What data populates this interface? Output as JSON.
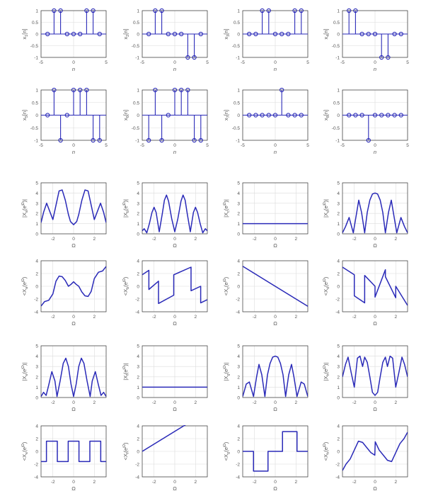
{
  "styles": {
    "line": "#2a2ab8",
    "axis": "#333333",
    "grid": "#dcdcdc",
    "tick": "#555555",
    "background": "#ffffff"
  },
  "chart_data": [
    {
      "type": "stem",
      "ylabel": "x_1[n]",
      "xlabel": "n",
      "xlim": [
        -5,
        5
      ],
      "ylim": [
        -1,
        1
      ],
      "xticks": [
        "-5",
        "0",
        "5"
      ],
      "yticks": [
        "1",
        "0.5",
        "0",
        "-0.5",
        "-1"
      ],
      "x": [
        -4,
        -3,
        -2,
        -1,
        0,
        1,
        2,
        3,
        4
      ],
      "values": [
        0,
        1,
        1,
        0,
        0,
        0,
        1,
        1,
        0
      ]
    },
    {
      "type": "stem",
      "ylabel": "x_2[n]",
      "xlabel": "n",
      "xlim": [
        -5,
        5
      ],
      "ylim": [
        -1,
        1
      ],
      "xticks": [
        "-5",
        "0",
        "5"
      ],
      "yticks": [
        "1",
        "0.5",
        "0",
        "-0.5",
        "-1"
      ],
      "x": [
        -4,
        -3,
        -2,
        -1,
        0,
        1,
        2,
        3,
        4
      ],
      "values": [
        0,
        1,
        1,
        0,
        0,
        0,
        -1,
        -1,
        0
      ]
    },
    {
      "type": "stem",
      "ylabel": "x_3[n]",
      "xlabel": "n",
      "xlim": [
        -5,
        5
      ],
      "ylim": [
        -1,
        1
      ],
      "xticks": [
        "-5",
        "0",
        "5"
      ],
      "yticks": [
        "1",
        "0.5",
        "0",
        "-0.5",
        "-1"
      ],
      "x": [
        -4,
        -3,
        -2,
        -1,
        0,
        1,
        2,
        3,
        4
      ],
      "values": [
        0,
        0,
        1,
        1,
        0,
        0,
        0,
        1,
        1
      ]
    },
    {
      "type": "stem",
      "ylabel": "x_4[n]",
      "xlabel": "n",
      "xlim": [
        -5,
        5
      ],
      "ylim": [
        -1,
        1
      ],
      "xticks": [
        "-5",
        "0",
        "5"
      ],
      "yticks": [
        "1",
        "0.5",
        "0",
        "-0.5",
        "-1"
      ],
      "x": [
        -4,
        -3,
        -2,
        -1,
        0,
        1,
        2,
        3,
        4
      ],
      "values": [
        1,
        1,
        0,
        0,
        0,
        -1,
        -1,
        0,
        0
      ]
    },
    {
      "type": "stem",
      "ylabel": "x_5[n]",
      "xlabel": "n",
      "xlim": [
        -5,
        5
      ],
      "ylim": [
        -1,
        1
      ],
      "xticks": [
        "-5",
        "0",
        "5"
      ],
      "yticks": [
        "1",
        "0.5",
        "0",
        "-0.5",
        "-1"
      ],
      "x": [
        -4,
        -3,
        -2,
        -1,
        0,
        1,
        2,
        3,
        4
      ],
      "values": [
        0,
        1,
        -1,
        0,
        1,
        1,
        1,
        -1,
        -1
      ]
    },
    {
      "type": "stem",
      "ylabel": "x_6[n]",
      "xlabel": "n",
      "xlim": [
        -5,
        5
      ],
      "ylim": [
        -1,
        1
      ],
      "xticks": [
        "-5",
        "0",
        "5"
      ],
      "yticks": [
        "1",
        "0.5",
        "0",
        "-0.5",
        "-1"
      ],
      "x": [
        -4,
        -3,
        -2,
        -1,
        0,
        1,
        2,
        3,
        4
      ],
      "values": [
        -1,
        1,
        -1,
        0,
        1,
        1,
        1,
        -1,
        -1
      ]
    },
    {
      "type": "stem",
      "ylabel": "x_7[n]",
      "xlabel": "n",
      "xlim": [
        -5,
        5
      ],
      "ylim": [
        -1,
        1
      ],
      "xticks": [
        "-5",
        "0",
        "5"
      ],
      "yticks": [
        "1",
        "0.5",
        "0",
        "-0.5",
        "-1"
      ],
      "x": [
        -4,
        -3,
        -2,
        -1,
        0,
        1,
        2,
        3,
        4
      ],
      "values": [
        0,
        0,
        0,
        0,
        0,
        1,
        0,
        0,
        0
      ]
    },
    {
      "type": "stem",
      "ylabel": "x_8[n]",
      "xlabel": "n",
      "xlim": [
        -5,
        5
      ],
      "ylim": [
        -1,
        1
      ],
      "xticks": [
        "-5",
        "0",
        "5"
      ],
      "yticks": [
        "1",
        "0.5",
        "0",
        "-0.5",
        "-1"
      ],
      "x": [
        -4,
        -3,
        -2,
        -1,
        0,
        1,
        2,
        3,
        4
      ],
      "values": [
        0,
        0,
        0,
        -1,
        0,
        0,
        0,
        0,
        0
      ]
    },
    {
      "type": "line",
      "ylabel": "|X_a(e^jΩ)|",
      "xlabel": "Ω",
      "xlim": [
        -3.1416,
        3.1416
      ],
      "ylim": [
        0,
        5
      ],
      "xticks": [
        "-2",
        "0",
        "2"
      ],
      "yticks": [
        "5",
        "4",
        "3",
        "2",
        "1",
        "0"
      ],
      "x": [
        -3.14,
        -2.9,
        -2.6,
        -2.3,
        -2.0,
        -1.7,
        -1.4,
        -1.1,
        -0.8,
        -0.5,
        -0.3,
        0,
        0.3,
        0.5,
        0.8,
        1.1,
        1.4,
        1.7,
        2.0,
        2.3,
        2.6,
        2.9,
        3.14
      ],
      "values": [
        1.1,
        2.1,
        3.0,
        2.2,
        1.4,
        2.8,
        4.2,
        4.3,
        3.3,
        1.9,
        1.2,
        0.9,
        1.2,
        1.9,
        3.3,
        4.3,
        4.2,
        2.8,
        1.4,
        2.2,
        3.0,
        2.1,
        1.1
      ]
    },
    {
      "type": "line",
      "ylabel": "|X_b(e^jΩ)|",
      "xlabel": "Ω",
      "xlim": [
        -3.1416,
        3.1416
      ],
      "ylim": [
        0,
        5
      ],
      "xticks": [
        "-2",
        "0",
        "2"
      ],
      "yticks": [
        "5",
        "4",
        "3",
        "2",
        "1",
        "0"
      ],
      "x": [
        -3.14,
        -2.95,
        -2.7,
        -2.45,
        -2.2,
        -2.0,
        -1.8,
        -1.5,
        -1.2,
        -1.0,
        -0.8,
        -0.6,
        -0.3,
        0,
        0.3,
        0.6,
        0.8,
        1.0,
        1.2,
        1.5,
        1.8,
        2.0,
        2.2,
        2.45,
        2.7,
        2.95,
        3.14
      ],
      "values": [
        0.3,
        0.5,
        0.1,
        1.0,
        2.1,
        2.6,
        2.1,
        0.2,
        2.0,
        3.3,
        3.8,
        3.2,
        1.5,
        0.2,
        1.5,
        3.2,
        3.8,
        3.3,
        2.0,
        0.2,
        2.1,
        2.6,
        2.1,
        1.0,
        0.1,
        0.5,
        0.3
      ]
    },
    {
      "type": "line",
      "ylabel": "|X_c(e^jΩ)|",
      "xlabel": "Ω",
      "xlim": [
        -3.1416,
        3.1416
      ],
      "ylim": [
        0,
        5
      ],
      "xticks": [
        "-2",
        "0",
        "2"
      ],
      "yticks": [
        "5",
        "4",
        "3",
        "2",
        "1",
        "0"
      ],
      "x": [
        -3.14,
        3.14
      ],
      "values": [
        1,
        1
      ]
    },
    {
      "type": "line",
      "ylabel": "|X_d(e^jΩ)|",
      "xlabel": "Ω",
      "xlim": [
        -3.1416,
        3.1416
      ],
      "ylim": [
        0,
        5
      ],
      "xticks": [
        "-2",
        "0",
        "2"
      ],
      "yticks": [
        "5",
        "4",
        "3",
        "2",
        "1",
        "0"
      ],
      "x": [
        -3.14,
        -2.85,
        -2.5,
        -2.1,
        -1.8,
        -1.57,
        -1.3,
        -1.0,
        -0.75,
        -0.5,
        -0.25,
        0,
        0.25,
        0.5,
        0.75,
        1.0,
        1.3,
        1.57,
        1.8,
        2.1,
        2.5,
        2.85,
        3.14
      ],
      "values": [
        0.1,
        0.7,
        1.6,
        0.1,
        1.9,
        3.3,
        2.1,
        0.1,
        2.1,
        3.3,
        3.9,
        4.0,
        3.9,
        3.3,
        2.1,
        0.1,
        2.1,
        3.3,
        1.9,
        0.1,
        1.6,
        0.7,
        0.1
      ]
    },
    {
      "type": "line",
      "ylabel": "<X_a(e^jΩ)",
      "xlabel": "Ω",
      "xlim": [
        -3.1416,
        3.1416
      ],
      "ylim": [
        -4,
        4
      ],
      "xticks": [
        "-2",
        "0",
        "2"
      ],
      "yticks": [
        "4",
        "2",
        "0",
        "-2",
        "-4"
      ],
      "x": [
        -3.14,
        -2.8,
        -2.4,
        -2.0,
        -1.7,
        -1.4,
        -1.1,
        -0.8,
        -0.5,
        -0.25,
        0,
        0.25,
        0.5,
        0.8,
        1.1,
        1.4,
        1.7,
        2.0,
        2.4,
        2.8,
        3.14
      ],
      "values": [
        -3.1,
        -2.4,
        -2.2,
        -1.2,
        0.8,
        1.6,
        1.5,
        0.9,
        0.0,
        0.3,
        0.7,
        0.3,
        0.0,
        -0.9,
        -1.5,
        -1.6,
        -0.8,
        1.2,
        2.2,
        2.4,
        3.1
      ]
    },
    {
      "type": "line",
      "ylabel": "<X_b(e^jΩ)",
      "xlabel": "Ω",
      "xlim": [
        -3.1416,
        3.1416
      ],
      "ylim": [
        -4,
        4
      ],
      "xticks": [
        "-2",
        "0",
        "2"
      ],
      "yticks": [
        "4",
        "2",
        "0",
        "-2",
        "-4"
      ],
      "x": [
        -3.14,
        -2.5,
        -2.5,
        -1.57,
        -1.57,
        -0.1,
        -0.1,
        1.57,
        1.57,
        2.5,
        2.5,
        3.14
      ],
      "values": [
        1.8,
        2.5,
        -0.5,
        0.8,
        -2.7,
        -1.4,
        1.8,
        3.0,
        -0.7,
        0.0,
        -2.6,
        -2.1
      ]
    },
    {
      "type": "line",
      "ylabel": "<X_c(e^jΩ)",
      "xlabel": "Ω",
      "xlim": [
        -3.1416,
        3.1416
      ],
      "ylim": [
        -4,
        4
      ],
      "xticks": [
        "-2",
        "0",
        "2"
      ],
      "yticks": [
        "4",
        "2",
        "0",
        "-2",
        "-4"
      ],
      "x": [
        -3.14,
        3.14
      ],
      "values": [
        3.14,
        -3.14
      ]
    },
    {
      "type": "line",
      "ylabel": "<X_d(e^jΩ)",
      "xlabel": "Ω",
      "xlim": [
        -3.1416,
        3.1416
      ],
      "ylim": [
        -4,
        4
      ],
      "xticks": [
        "-2",
        "0",
        "2"
      ],
      "yticks": [
        "4",
        "2",
        "0",
        "-2",
        "-4"
      ],
      "x": [
        -3.14,
        -2.0,
        -2.0,
        -1.0,
        -1.0,
        0,
        0,
        1.0,
        1.0,
        2.0,
        2.0,
        3.14
      ],
      "values": [
        3.0,
        1.8,
        -1.5,
        -2.6,
        1.7,
        0.0,
        -1.7,
        2.6,
        1.5,
        -1.8,
        0.0,
        -3.0
      ]
    },
    {
      "type": "line",
      "ylabel": "|X_e(e^jΩ)|",
      "xlabel": "Ω",
      "xlim": [
        -3.1416,
        3.1416
      ],
      "ylim": [
        0,
        5
      ],
      "xticks": [
        "-2",
        "0",
        "2"
      ],
      "yticks": [
        "5",
        "4",
        "3",
        "2",
        "1",
        "0"
      ],
      "x": [
        -3.14,
        -2.9,
        -2.65,
        -2.4,
        -2.1,
        -1.8,
        -1.6,
        -1.3,
        -1.0,
        -0.75,
        -0.5,
        -0.25,
        0,
        0.25,
        0.5,
        0.75,
        1.0,
        1.3,
        1.6,
        1.8,
        2.1,
        2.4,
        2.65,
        2.9,
        3.14
      ],
      "values": [
        0.1,
        0.5,
        0.2,
        1.2,
        2.5,
        1.6,
        0.1,
        1.6,
        3.3,
        3.8,
        3.0,
        1.3,
        0.1,
        1.3,
        3.0,
        3.8,
        3.3,
        1.6,
        0.1,
        1.6,
        2.5,
        1.2,
        0.2,
        0.5,
        0.1
      ]
    },
    {
      "type": "line",
      "ylabel": "|X_f(e^jΩ)|",
      "xlabel": "Ω",
      "xlim": [
        -3.1416,
        3.1416
      ],
      "ylim": [
        0,
        5
      ],
      "xticks": [
        "-2",
        "0",
        "2"
      ],
      "yticks": [
        "5",
        "4",
        "3",
        "2",
        "1",
        "0"
      ],
      "x": [
        -3.14,
        3.14
      ],
      "values": [
        1,
        1
      ]
    },
    {
      "type": "line",
      "ylabel": "|X_g(e^jΩ)|",
      "xlabel": "Ω",
      "xlim": [
        -3.1416,
        3.1416
      ],
      "ylim": [
        0,
        5
      ],
      "xticks": [
        "-2",
        "0",
        "2"
      ],
      "yticks": [
        "5",
        "4",
        "3",
        "2",
        "1",
        "0"
      ],
      "x": [
        -3.14,
        -2.8,
        -2.5,
        -2.1,
        -1.8,
        -1.57,
        -1.3,
        -1.0,
        -0.75,
        -0.5,
        -0.25,
        0,
        0.25,
        0.5,
        0.75,
        1.0,
        1.3,
        1.57,
        1.8,
        2.1,
        2.5,
        2.8,
        3.14
      ],
      "values": [
        0.1,
        1.3,
        1.5,
        0.1,
        2.0,
        3.2,
        2.2,
        0.1,
        2.2,
        3.3,
        3.9,
        4.0,
        3.9,
        3.3,
        2.2,
        0.1,
        2.2,
        3.2,
        2.0,
        0.1,
        1.5,
        1.3,
        0.1
      ]
    },
    {
      "type": "line",
      "ylabel": "|X_h(e^jΩ)|",
      "xlabel": "Ω",
      "xlim": [
        -3.1416,
        3.1416
      ],
      "ylim": [
        0,
        5
      ],
      "xticks": [
        "-2",
        "0",
        "2"
      ],
      "yticks": [
        "5",
        "4",
        "3",
        "2",
        "1",
        "0"
      ],
      "x": [
        -3.14,
        -2.85,
        -2.6,
        -2.3,
        -2.0,
        -1.7,
        -1.45,
        -1.2,
        -1.0,
        -0.75,
        -0.5,
        -0.25,
        0,
        0.25,
        0.5,
        0.75,
        1.0,
        1.2,
        1.45,
        1.7,
        2.0,
        2.3,
        2.6,
        2.85,
        3.14
      ],
      "values": [
        2.0,
        3.2,
        3.9,
        2.4,
        1.0,
        3.8,
        4.0,
        3.0,
        3.9,
        3.4,
        2.0,
        0.5,
        0.2,
        0.5,
        2.0,
        3.4,
        3.9,
        3.0,
        4.0,
        3.8,
        1.0,
        2.4,
        3.9,
        3.2,
        2.0
      ]
    },
    {
      "type": "line",
      "ylabel": "<X_e(e^jΩ)",
      "xlabel": "Ω",
      "xlim": [
        -3.1416,
        3.1416
      ],
      "ylim": [
        -4,
        4
      ],
      "xticks": [
        "-2",
        "0",
        "2"
      ],
      "yticks": [
        "4",
        "2",
        "0",
        "-2",
        "-4"
      ],
      "x": [
        -3.14,
        -2.62,
        -2.62,
        -1.57,
        -1.57,
        -0.52,
        -0.52,
        0.52,
        0.52,
        1.57,
        1.57,
        2.62,
        2.62,
        3.14
      ],
      "values": [
        -1.6,
        -1.6,
        1.6,
        1.6,
        -1.6,
        -1.6,
        1.6,
        1.6,
        -1.6,
        -1.6,
        1.6,
        1.6,
        -1.6,
        -1.6
      ]
    },
    {
      "type": "line",
      "ylabel": "<X_f(e^jΩ)",
      "xlabel": "Ω",
      "xlim": [
        -3.1416,
        3.1416
      ],
      "ylim": [
        -4,
        4
      ],
      "xticks": [
        "-2",
        "0",
        "2"
      ],
      "yticks": [
        "4",
        "2",
        "0",
        "-2",
        "-4"
      ],
      "x": [
        -3.14,
        1.57
      ],
      "values": [
        0.0,
        4.7
      ]
    },
    {
      "type": "line",
      "ylabel": "<X_g(e^jΩ)",
      "xlabel": "Ω",
      "xlim": [
        -3.1416,
        3.1416
      ],
      "ylim": [
        -4,
        4
      ],
      "xticks": [
        "-2",
        "0",
        "2"
      ],
      "yticks": [
        "4",
        "2",
        "0",
        "-2",
        "-4"
      ],
      "x": [
        -3.14,
        -2.1,
        -2.1,
        -0.7,
        -0.7,
        0.7,
        0.7,
        2.1,
        2.1,
        3.14
      ],
      "values": [
        0.0,
        0.0,
        -3.1,
        -3.1,
        0.0,
        0.0,
        3.1,
        3.1,
        0.0,
        0.0
      ]
    },
    {
      "type": "line",
      "ylabel": "<X_h(e^jΩ)",
      "xlabel": "Ω",
      "xlim": [
        -3.1416,
        3.1416
      ],
      "ylim": [
        -4,
        4
      ],
      "xticks": [
        "-2",
        "0",
        "2"
      ],
      "yticks": [
        "4",
        "2",
        "0",
        "-2",
        "-4"
      ],
      "x": [
        -3.14,
        -2.8,
        -2.4,
        -2.0,
        -1.6,
        -1.2,
        -0.8,
        -0.4,
        -0.02,
        0.02,
        0.4,
        0.8,
        1.2,
        1.6,
        2.0,
        2.4,
        2.8,
        3.14
      ],
      "values": [
        -3.0,
        -2.0,
        -1.2,
        0.2,
        1.6,
        1.4,
        0.6,
        -0.2,
        -0.6,
        1.5,
        0.2,
        -0.6,
        -1.4,
        -1.6,
        -0.2,
        1.2,
        2.0,
        3.0
      ]
    }
  ]
}
